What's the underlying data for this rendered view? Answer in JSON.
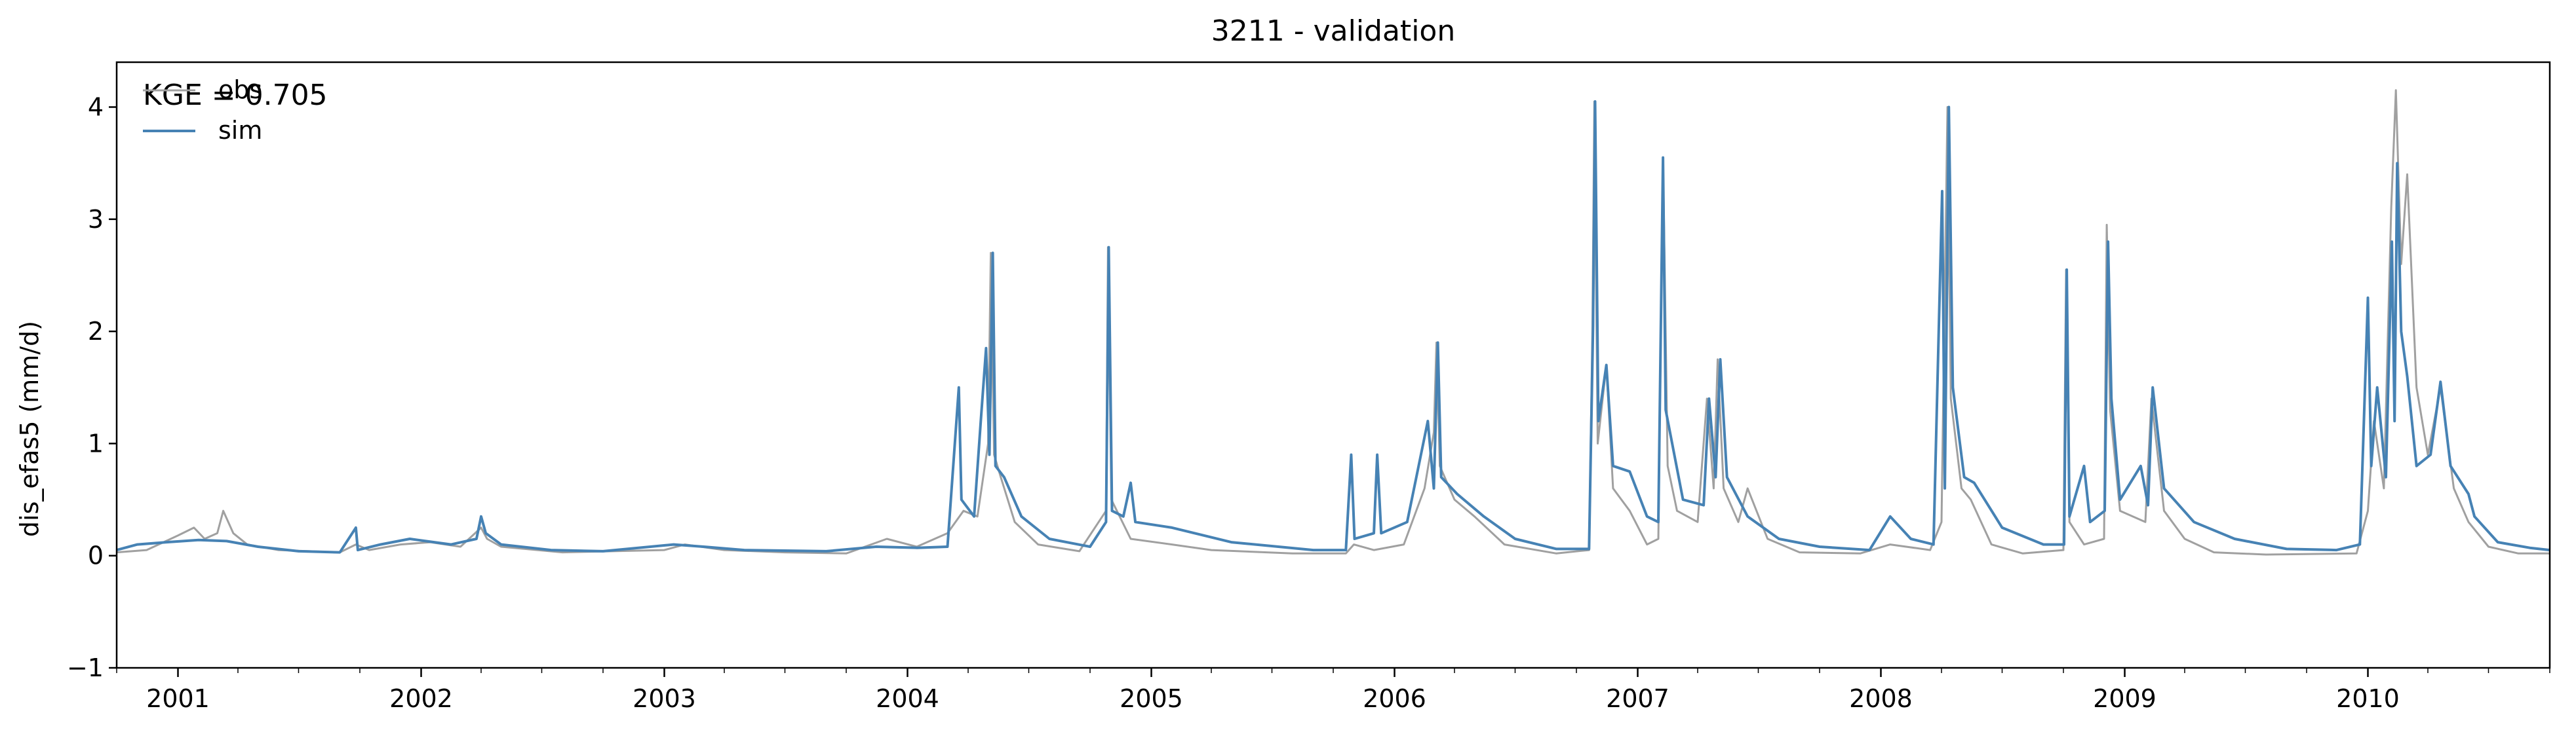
{
  "chart_data": {
    "type": "line",
    "title": "3211 - validation",
    "xlabel": "",
    "ylabel": "dis_efas5 (mm/d)",
    "annotation": "KGE = 0.705",
    "xlim": [
      "2000-10-01",
      "2010-10-01"
    ],
    "ylim": [
      -1,
      4.4
    ],
    "yticks": [
      -1,
      0,
      1,
      2,
      3,
      4
    ],
    "xticks": [
      "2001-01-01",
      "2002-01-01",
      "2003-01-01",
      "2004-01-01",
      "2005-01-01",
      "2006-01-01",
      "2007-01-01",
      "2008-01-01",
      "2009-01-01",
      "2010-01-01"
    ],
    "xtick_labels": [
      "2001",
      "2002",
      "2003",
      "2004",
      "2005",
      "2006",
      "2007",
      "2008",
      "2009",
      "2010"
    ],
    "grid": false,
    "legend": {
      "position": "top-left",
      "entries": [
        "obs",
        "sim"
      ]
    },
    "colors": {
      "obs": "#a0a0a0",
      "sim": "#4682b4"
    },
    "series": [
      {
        "name": "obs",
        "color": "#a0a0a0",
        "points": [
          [
            "2000-10-01",
            0.03
          ],
          [
            "2000-11-15",
            0.05
          ],
          [
            "2001-01-01",
            0.18
          ],
          [
            "2001-01-25",
            0.25
          ],
          [
            "2001-02-10",
            0.15
          ],
          [
            "2001-03-01",
            0.2
          ],
          [
            "2001-03-10",
            0.4
          ],
          [
            "2001-03-25",
            0.2
          ],
          [
            "2001-04-15",
            0.1
          ],
          [
            "2001-06-01",
            0.05
          ],
          [
            "2001-09-01",
            0.03
          ],
          [
            "2001-09-25",
            0.1
          ],
          [
            "2001-10-15",
            0.05
          ],
          [
            "2001-12-01",
            0.1
          ],
          [
            "2002-01-15",
            0.12
          ],
          [
            "2002-03-01",
            0.08
          ],
          [
            "2002-04-01",
            0.25
          ],
          [
            "2002-04-10",
            0.15
          ],
          [
            "2002-05-01",
            0.08
          ],
          [
            "2002-08-01",
            0.03
          ],
          [
            "2003-01-01",
            0.05
          ],
          [
            "2003-02-01",
            0.1
          ],
          [
            "2003-04-01",
            0.05
          ],
          [
            "2003-07-01",
            0.03
          ],
          [
            "2003-10-01",
            0.02
          ],
          [
            "2003-12-01",
            0.15
          ],
          [
            "2004-01-15",
            0.08
          ],
          [
            "2004-03-01",
            0.2
          ],
          [
            "2004-03-25",
            0.4
          ],
          [
            "2004-04-15",
            0.35
          ],
          [
            "2004-05-01",
            1.0
          ],
          [
            "2004-05-05",
            2.7
          ],
          [
            "2004-05-10",
            0.9
          ],
          [
            "2004-05-20",
            0.7
          ],
          [
            "2004-06-10",
            0.3
          ],
          [
            "2004-07-15",
            0.1
          ],
          [
            "2004-09-15",
            0.04
          ],
          [
            "2004-10-25",
            0.4
          ],
          [
            "2004-10-28",
            2.75
          ],
          [
            "2004-11-02",
            0.5
          ],
          [
            "2004-12-01",
            0.15
          ],
          [
            "2005-02-01",
            0.1
          ],
          [
            "2005-04-01",
            0.05
          ],
          [
            "2005-08-01",
            0.02
          ],
          [
            "2005-10-20",
            0.02
          ],
          [
            "2005-11-01",
            0.1
          ],
          [
            "2005-12-01",
            0.05
          ],
          [
            "2006-01-15",
            0.1
          ],
          [
            "2006-02-15",
            0.6
          ],
          [
            "2006-03-01",
            1.1
          ],
          [
            "2006-03-05",
            1.9
          ],
          [
            "2006-03-10",
            0.8
          ],
          [
            "2006-04-01",
            0.5
          ],
          [
            "2006-05-01",
            0.35
          ],
          [
            "2006-06-15",
            0.1
          ],
          [
            "2006-09-01",
            0.02
          ],
          [
            "2006-10-20",
            0.05
          ],
          [
            "2006-10-25",
            2.0
          ],
          [
            "2006-10-28",
            4.05
          ],
          [
            "2006-11-02",
            1.0
          ],
          [
            "2006-11-15",
            1.7
          ],
          [
            "2006-11-25",
            0.6
          ],
          [
            "2006-12-20",
            0.4
          ],
          [
            "2007-01-15",
            0.1
          ],
          [
            "2007-02-01",
            0.15
          ],
          [
            "2007-02-08",
            3.55
          ],
          [
            "2007-02-15",
            0.8
          ],
          [
            "2007-03-01",
            0.4
          ],
          [
            "2007-04-01",
            0.3
          ],
          [
            "2007-04-15",
            1.4
          ],
          [
            "2007-04-25",
            0.6
          ],
          [
            "2007-05-01",
            1.75
          ],
          [
            "2007-05-10",
            0.6
          ],
          [
            "2007-06-01",
            0.3
          ],
          [
            "2007-06-15",
            0.6
          ],
          [
            "2007-07-15",
            0.15
          ],
          [
            "2007-09-01",
            0.03
          ],
          [
            "2007-12-01",
            0.02
          ],
          [
            "2008-01-15",
            0.1
          ],
          [
            "2008-03-15",
            0.05
          ],
          [
            "2008-04-01",
            0.3
          ],
          [
            "2008-04-10",
            4.0
          ],
          [
            "2008-04-15",
            1.4
          ],
          [
            "2008-05-01",
            0.6
          ],
          [
            "2008-05-15",
            0.5
          ],
          [
            "2008-06-15",
            0.1
          ],
          [
            "2008-08-01",
            0.02
          ],
          [
            "2008-10-01",
            0.05
          ],
          [
            "2008-10-05",
            2.55
          ],
          [
            "2008-10-10",
            0.3
          ],
          [
            "2008-11-01",
            0.1
          ],
          [
            "2008-12-01",
            0.15
          ],
          [
            "2008-12-05",
            2.95
          ],
          [
            "2008-12-10",
            1.3
          ],
          [
            "2008-12-25",
            0.4
          ],
          [
            "2009-02-01",
            0.3
          ],
          [
            "2009-02-10",
            1.4
          ],
          [
            "2009-03-01",
            0.4
          ],
          [
            "2009-04-01",
            0.15
          ],
          [
            "2009-05-15",
            0.03
          ],
          [
            "2009-08-01",
            0.01
          ],
          [
            "2009-12-15",
            0.02
          ],
          [
            "2010-01-01",
            0.4
          ],
          [
            "2010-01-10",
            1.2
          ],
          [
            "2010-01-25",
            0.6
          ],
          [
            "2010-02-05",
            3.1
          ],
          [
            "2010-02-12",
            4.15
          ],
          [
            "2010-02-20",
            2.6
          ],
          [
            "2010-03-01",
            3.4
          ],
          [
            "2010-03-15",
            1.5
          ],
          [
            "2010-04-01",
            0.9
          ],
          [
            "2010-04-20",
            1.5
          ],
          [
            "2010-05-10",
            0.6
          ],
          [
            "2010-06-01",
            0.3
          ],
          [
            "2010-07-01",
            0.08
          ],
          [
            "2010-08-15",
            0.02
          ],
          [
            "2010-10-01",
            0.02
          ]
        ]
      },
      {
        "name": "sim",
        "color": "#4682b4",
        "points": [
          [
            "2000-10-01",
            0.05
          ],
          [
            "2000-11-01",
            0.1
          ],
          [
            "2000-12-15",
            0.12
          ],
          [
            "2001-02-01",
            0.14
          ],
          [
            "2001-03-15",
            0.13
          ],
          [
            "2001-05-01",
            0.08
          ],
          [
            "2001-07-01",
            0.04
          ],
          [
            "2001-09-01",
            0.03
          ],
          [
            "2001-09-25",
            0.25
          ],
          [
            "2001-09-28",
            0.05
          ],
          [
            "2001-11-01",
            0.1
          ],
          [
            "2001-12-15",
            0.15
          ],
          [
            "2002-02-15",
            0.1
          ],
          [
            "2002-03-25",
            0.15
          ],
          [
            "2002-04-01",
            0.35
          ],
          [
            "2002-04-08",
            0.2
          ],
          [
            "2002-05-01",
            0.1
          ],
          [
            "2002-07-15",
            0.05
          ],
          [
            "2002-10-01",
            0.04
          ],
          [
            "2003-01-15",
            0.1
          ],
          [
            "2003-03-01",
            0.08
          ],
          [
            "2003-05-01",
            0.05
          ],
          [
            "2003-09-01",
            0.04
          ],
          [
            "2003-11-15",
            0.08
          ],
          [
            "2004-01-15",
            0.07
          ],
          [
            "2004-03-01",
            0.08
          ],
          [
            "2004-03-18",
            1.5
          ],
          [
            "2004-03-22",
            0.5
          ],
          [
            "2004-04-10",
            0.35
          ],
          [
            "2004-04-20",
            1.2
          ],
          [
            "2004-04-28",
            1.85
          ],
          [
            "2004-05-03",
            0.9
          ],
          [
            "2004-05-08",
            2.7
          ],
          [
            "2004-05-12",
            0.8
          ],
          [
            "2004-05-25",
            0.7
          ],
          [
            "2004-06-20",
            0.35
          ],
          [
            "2004-08-01",
            0.15
          ],
          [
            "2004-10-01",
            0.08
          ],
          [
            "2004-10-25",
            0.3
          ],
          [
            "2004-10-29",
            2.75
          ],
          [
            "2004-11-03",
            0.4
          ],
          [
            "2004-11-20",
            0.35
          ],
          [
            "2004-12-01",
            0.65
          ],
          [
            "2004-12-08",
            0.3
          ],
          [
            "2005-02-01",
            0.25
          ],
          [
            "2005-05-01",
            0.12
          ],
          [
            "2005-09-01",
            0.05
          ],
          [
            "2005-10-20",
            0.05
          ],
          [
            "2005-10-28",
            0.9
          ],
          [
            "2005-11-02",
            0.15
          ],
          [
            "2005-12-01",
            0.2
          ],
          [
            "2005-12-06",
            0.9
          ],
          [
            "2005-12-12",
            0.2
          ],
          [
            "2006-01-20",
            0.3
          ],
          [
            "2006-02-20",
            1.2
          ],
          [
            "2006-03-01",
            0.6
          ],
          [
            "2006-03-07",
            1.9
          ],
          [
            "2006-03-12",
            0.7
          ],
          [
            "2006-04-05",
            0.55
          ],
          [
            "2006-05-15",
            0.35
          ],
          [
            "2006-07-01",
            0.15
          ],
          [
            "2006-09-01",
            0.06
          ],
          [
            "2006-10-20",
            0.06
          ],
          [
            "2006-10-26",
            2.05
          ],
          [
            "2006-10-29",
            4.05
          ],
          [
            "2006-11-03",
            1.2
          ],
          [
            "2006-11-15",
            1.7
          ],
          [
            "2006-11-25",
            0.8
          ],
          [
            "2006-12-20",
            0.75
          ],
          [
            "2007-01-15",
            0.35
          ],
          [
            "2007-02-01",
            0.3
          ],
          [
            "2007-02-08",
            3.55
          ],
          [
            "2007-02-12",
            1.3
          ],
          [
            "2007-03-10",
            0.5
          ],
          [
            "2007-04-10",
            0.45
          ],
          [
            "2007-04-18",
            1.4
          ],
          [
            "2007-04-28",
            0.7
          ],
          [
            "2007-05-05",
            1.75
          ],
          [
            "2007-05-15",
            0.7
          ],
          [
            "2007-06-15",
            0.35
          ],
          [
            "2007-08-01",
            0.15
          ],
          [
            "2007-10-01",
            0.08
          ],
          [
            "2007-12-15",
            0.05
          ],
          [
            "2008-01-15",
            0.35
          ],
          [
            "2008-02-15",
            0.15
          ],
          [
            "2008-03-20",
            0.1
          ],
          [
            "2008-04-02",
            3.25
          ],
          [
            "2008-04-06",
            0.6
          ],
          [
            "2008-04-12",
            4.0
          ],
          [
            "2008-04-18",
            1.5
          ],
          [
            "2008-05-05",
            0.7
          ],
          [
            "2008-05-20",
            0.65
          ],
          [
            "2008-07-01",
            0.25
          ],
          [
            "2008-09-01",
            0.1
          ],
          [
            "2008-10-02",
            0.1
          ],
          [
            "2008-10-06",
            2.55
          ],
          [
            "2008-10-10",
            0.35
          ],
          [
            "2008-11-01",
            0.8
          ],
          [
            "2008-11-10",
            0.3
          ],
          [
            "2008-12-02",
            0.4
          ],
          [
            "2008-12-07",
            2.8
          ],
          [
            "2008-12-12",
            1.4
          ],
          [
            "2008-12-25",
            0.5
          ],
          [
            "2009-01-25",
            0.8
          ],
          [
            "2009-02-05",
            0.45
          ],
          [
            "2009-02-12",
            1.5
          ],
          [
            "2009-03-01",
            0.6
          ],
          [
            "2009-04-15",
            0.3
          ],
          [
            "2009-06-15",
            0.15
          ],
          [
            "2009-09-01",
            0.06
          ],
          [
            "2009-11-15",
            0.05
          ],
          [
            "2009-12-20",
            0.1
          ],
          [
            "2010-01-01",
            2.3
          ],
          [
            "2010-01-06",
            0.8
          ],
          [
            "2010-01-15",
            1.5
          ],
          [
            "2010-01-28",
            0.7
          ],
          [
            "2010-02-06",
            2.8
          ],
          [
            "2010-02-10",
            1.2
          ],
          [
            "2010-02-14",
            3.5
          ],
          [
            "2010-02-20",
            2.0
          ],
          [
            "2010-03-01",
            1.6
          ],
          [
            "2010-03-15",
            0.8
          ],
          [
            "2010-04-05",
            0.9
          ],
          [
            "2010-04-20",
            1.55
          ],
          [
            "2010-05-05",
            0.8
          ],
          [
            "2010-06-01",
            0.55
          ],
          [
            "2010-06-10",
            0.35
          ],
          [
            "2010-07-15",
            0.12
          ],
          [
            "2010-09-01",
            0.07
          ],
          [
            "2010-10-01",
            0.05
          ]
        ]
      }
    ]
  }
}
